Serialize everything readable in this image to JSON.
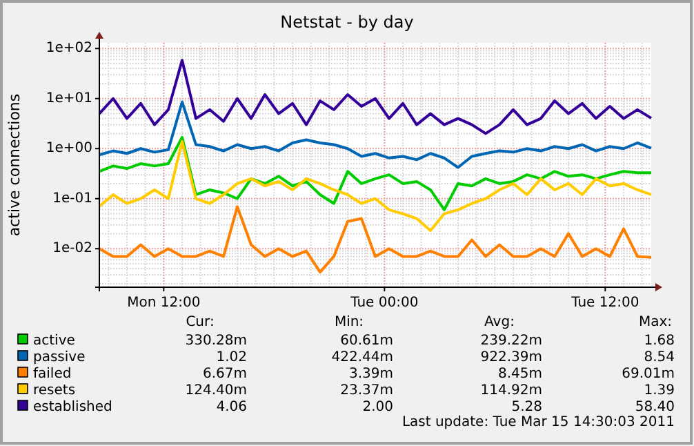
{
  "chart_data": {
    "type": "line",
    "title": "Netstat - by day",
    "ylabel": "active  connections",
    "log": true,
    "grid": true,
    "legend": "bottom",
    "line_style": "solid",
    "xlim": [
      "2011-03-14T08:30",
      "2011-03-15T14:30"
    ],
    "xticks": [
      {
        "value": "2011-03-14T12:00",
        "label": "Mon 12:00"
      },
      {
        "value": "2011-03-15T00:00",
        "label": "Tue 00:00"
      },
      {
        "value": "2011-03-15T12:00",
        "label": "Tue 12:00"
      }
    ],
    "ylim": [
      0.0017,
      130
    ],
    "yticks": [
      {
        "value": 0.01,
        "label": "1e-02"
      },
      {
        "value": 0.1,
        "label": "1e-01"
      },
      {
        "value": 1,
        "label": "1e+00"
      },
      {
        "value": 10,
        "label": "1e+01"
      },
      {
        "value": 100,
        "label": "1e+02"
      }
    ],
    "x": [
      "2011-03-14T08:30",
      "2011-03-14T09:15",
      "2011-03-14T10:00",
      "2011-03-14T10:45",
      "2011-03-14T11:30",
      "2011-03-14T12:15",
      "2011-03-14T13:00",
      "2011-03-14T13:45",
      "2011-03-14T14:30",
      "2011-03-14T15:15",
      "2011-03-14T16:00",
      "2011-03-14T16:45",
      "2011-03-14T17:30",
      "2011-03-14T18:15",
      "2011-03-14T19:00",
      "2011-03-14T19:45",
      "2011-03-14T20:30",
      "2011-03-14T21:15",
      "2011-03-14T22:00",
      "2011-03-14T22:45",
      "2011-03-14T23:30",
      "2011-03-15T00:15",
      "2011-03-15T01:00",
      "2011-03-15T01:45",
      "2011-03-15T02:30",
      "2011-03-15T03:15",
      "2011-03-15T04:00",
      "2011-03-15T04:45",
      "2011-03-15T05:30",
      "2011-03-15T06:15",
      "2011-03-15T07:00",
      "2011-03-15T07:45",
      "2011-03-15T08:30",
      "2011-03-15T09:15",
      "2011-03-15T10:00",
      "2011-03-15T10:45",
      "2011-03-15T11:30",
      "2011-03-15T12:15",
      "2011-03-15T13:00",
      "2011-03-15T13:45",
      "2011-03-15T14:30"
    ],
    "series": [
      {
        "name": "active",
        "color": "#00cc00",
        "values": [
          0.35,
          0.45,
          0.4,
          0.5,
          0.45,
          0.5,
          1.68,
          0.12,
          0.15,
          0.13,
          0.1,
          0.25,
          0.2,
          0.28,
          0.18,
          0.22,
          0.12,
          0.08,
          0.35,
          0.2,
          0.25,
          0.3,
          0.2,
          0.22,
          0.15,
          0.06,
          0.2,
          0.18,
          0.25,
          0.2,
          0.22,
          0.3,
          0.25,
          0.35,
          0.28,
          0.3,
          0.25,
          0.3,
          0.35,
          0.33,
          0.33
        ]
      },
      {
        "name": "passive",
        "color": "#0066b3",
        "values": [
          0.75,
          0.9,
          0.8,
          1.0,
          0.85,
          0.95,
          8.54,
          1.2,
          1.1,
          0.9,
          1.2,
          1.0,
          1.1,
          0.9,
          1.3,
          1.5,
          1.3,
          1.2,
          1.0,
          0.7,
          0.8,
          0.65,
          0.7,
          0.6,
          0.8,
          0.65,
          0.42,
          0.7,
          0.8,
          0.9,
          0.85,
          1.0,
          0.9,
          1.1,
          1.0,
          1.2,
          0.9,
          1.1,
          1.0,
          1.3,
          1.02
        ]
      },
      {
        "name": "failed",
        "color": "#ff8000",
        "values": [
          0.01,
          0.007,
          0.007,
          0.012,
          0.007,
          0.01,
          0.007,
          0.007,
          0.009,
          0.007,
          0.069,
          0.012,
          0.007,
          0.01,
          0.007,
          0.009,
          0.0034,
          0.007,
          0.035,
          0.04,
          0.007,
          0.01,
          0.007,
          0.007,
          0.009,
          0.007,
          0.007,
          0.015,
          0.007,
          0.012,
          0.007,
          0.007,
          0.01,
          0.007,
          0.02,
          0.007,
          0.01,
          0.007,
          0.025,
          0.007,
          0.0067
        ]
      },
      {
        "name": "resets",
        "color": "#ffcc00",
        "values": [
          0.07,
          0.12,
          0.08,
          0.1,
          0.15,
          0.1,
          1.39,
          0.1,
          0.08,
          0.12,
          0.2,
          0.25,
          0.18,
          0.22,
          0.15,
          0.25,
          0.2,
          0.15,
          0.12,
          0.08,
          0.1,
          0.06,
          0.05,
          0.04,
          0.023,
          0.05,
          0.06,
          0.08,
          0.1,
          0.15,
          0.2,
          0.12,
          0.25,
          0.15,
          0.2,
          0.12,
          0.25,
          0.18,
          0.2,
          0.15,
          0.12
        ]
      },
      {
        "name": "established",
        "color": "#330099",
        "values": [
          5,
          10,
          4,
          8,
          3,
          6,
          58.4,
          4,
          6,
          3.5,
          10,
          4,
          12,
          5,
          8,
          3,
          9,
          6,
          12,
          7,
          10,
          4,
          8,
          3,
          5,
          3,
          4,
          3,
          2,
          3,
          6,
          3,
          4,
          9,
          5,
          8,
          4,
          7,
          4,
          6,
          4.06
        ]
      }
    ],
    "annotations": [
      "Cur:",
      "Min:",
      "Avg:",
      "Max:",
      "330.28m",
      "60.61m",
      "239.22m",
      "1.68",
      "1.02",
      "422.44m",
      "922.39m",
      "8.54",
      "6.67m",
      "3.39m",
      "8.45m",
      "69.01m",
      "124.40m",
      "23.37m",
      "114.92m",
      "1.39",
      "4.06",
      "2.00",
      "5.28",
      "58.40",
      "Last update: Tue Mar 15 14:30:03 2011"
    ]
  }
}
